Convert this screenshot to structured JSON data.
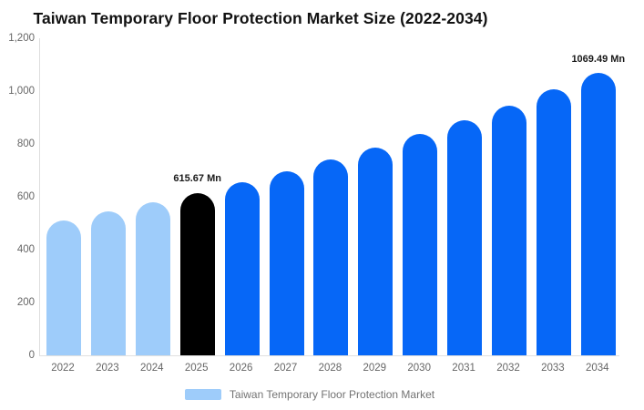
{
  "title": "Taiwan Temporary Floor Protection Market Size (2022-2034)",
  "colors": {
    "historical_bar": "#9ECCFA",
    "base_year_bar": "#000000",
    "forecast_bar": "#0667F7",
    "axis_line": "#DEDEDE",
    "axis_text": "#666666",
    "legend_text": "#737373",
    "title_text": "#111111",
    "value_label_text": "#1A1A1A",
    "background": "#FFFFFF"
  },
  "chart_data": {
    "type": "bar",
    "title": "Taiwan Temporary Floor Protection Market Size (2022-2034)",
    "xlabel": "",
    "ylabel": "",
    "unit": "Mn",
    "ylim": [
      0,
      1200
    ],
    "ytick_labels": [
      "0",
      "200",
      "400",
      "600",
      "800",
      "1,000",
      "1,200"
    ],
    "ytick_values": [
      0,
      200,
      400,
      600,
      800,
      1000,
      1200
    ],
    "grid": "off",
    "legend_position": "bottom",
    "categories": [
      "2022",
      "2023",
      "2024",
      "2025",
      "2026",
      "2027",
      "2028",
      "2029",
      "2030",
      "2031",
      "2032",
      "2033",
      "2034"
    ],
    "values": [
      512.2,
      544.6,
      579.0,
      615.67,
      654.6,
      696.1,
      740.1,
      787.0,
      836.8,
      889.7,
      946.0,
      1005.9,
      1069.49
    ],
    "bar_color_keys": [
      "historical_bar",
      "historical_bar",
      "historical_bar",
      "base_year_bar",
      "forecast_bar",
      "forecast_bar",
      "forecast_bar",
      "forecast_bar",
      "forecast_bar",
      "forecast_bar",
      "forecast_bar",
      "forecast_bar",
      "forecast_bar"
    ],
    "point_labels": [
      "",
      "",
      "",
      "615.67 Mn",
      "",
      "",
      "",
      "",
      "",
      "",
      "",
      "",
      "1069.49 Mn"
    ],
    "legend": [
      {
        "label": "Taiwan Temporary Floor Protection Market",
        "color": "#9ECCFA"
      }
    ]
  }
}
